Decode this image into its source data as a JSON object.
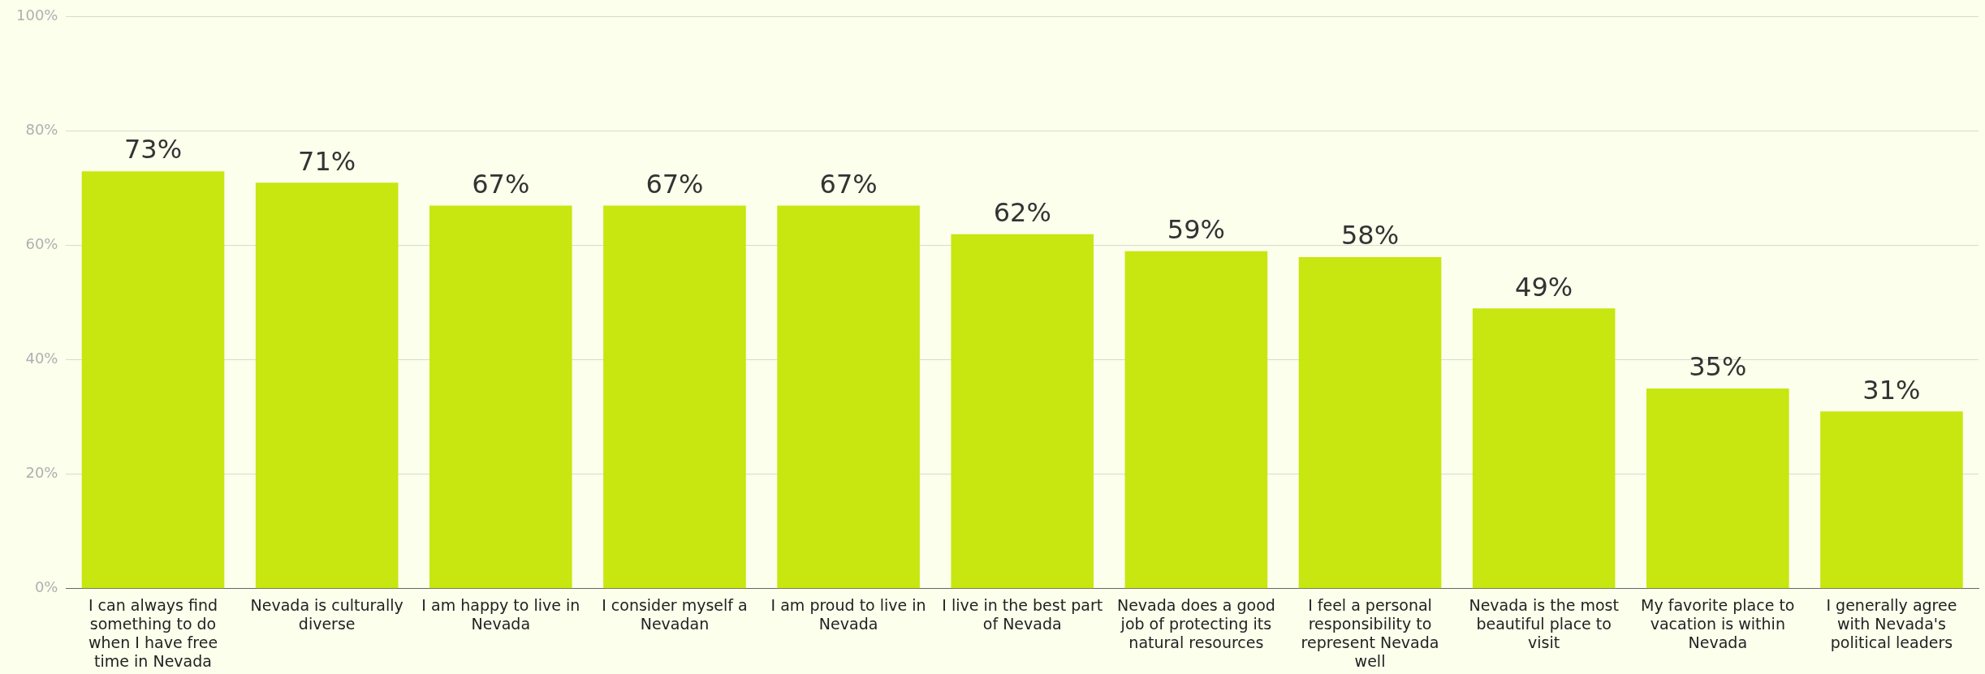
{
  "chart_data": {
    "type": "bar",
    "categories": [
      "I can always find something to do when I have free time in Nevada",
      "Nevada is culturally diverse",
      "I am happy to live in Nevada",
      "I consider myself a Nevadan",
      "I am proud to live in Nevada",
      "I live in the best part of Nevada",
      "Nevada does a good job of protecting its natural resources",
      "I feel a personal responsibility to represent Nevada well",
      "Nevada is the most beautiful place to visit",
      "My favorite place to vacation is within Nevada",
      "I generally agree with Nevada's political leaders"
    ],
    "values": [
      73,
      71,
      67,
      67,
      67,
      62,
      59,
      58,
      49,
      35,
      31
    ],
    "color": "#c8e60f",
    "value_labels": [
      "73%",
      "71%",
      "67%",
      "67%",
      "67%",
      "62%",
      "59%",
      "58%",
      "49%",
      "35%",
      "31%"
    ],
    "ylim": [
      0,
      100
    ],
    "yticks": [
      {
        "value": 0,
        "label": "0%"
      },
      {
        "value": 20,
        "label": "20%"
      },
      {
        "value": 40,
        "label": "40%"
      },
      {
        "value": 60,
        "label": "60%"
      },
      {
        "value": 80,
        "label": "80%"
      },
      {
        "value": 100,
        "label": "100%"
      }
    ],
    "grid": "y",
    "legend": false
  }
}
